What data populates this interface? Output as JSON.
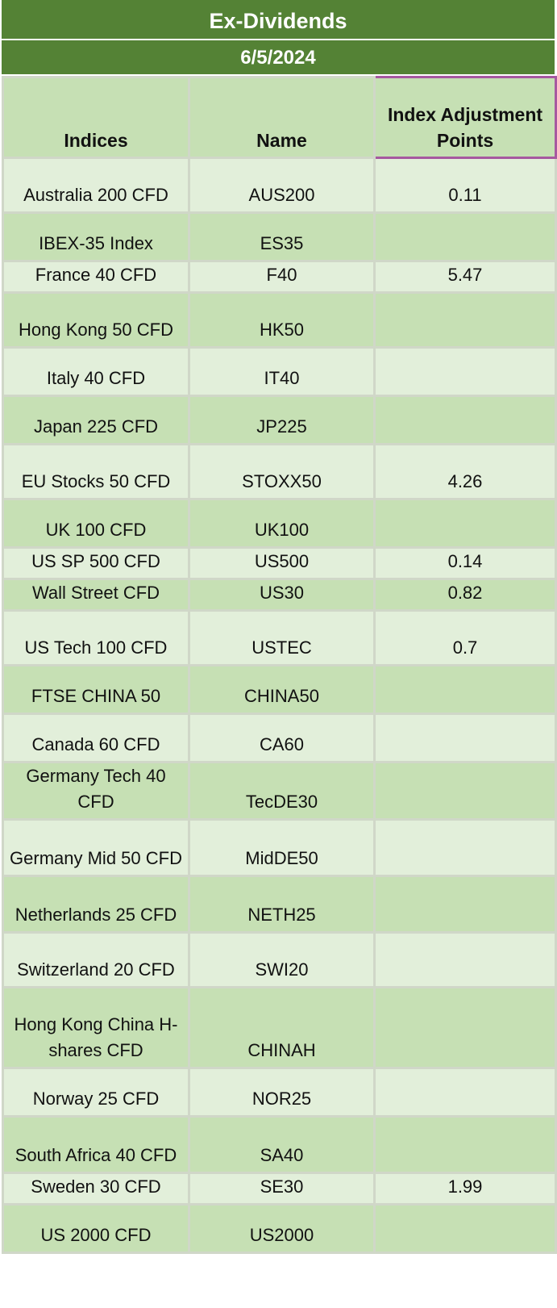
{
  "title": "Ex-Dividends",
  "date": "6/5/2024",
  "headers": {
    "indices": "Indices",
    "name": "Name",
    "adjustment": "Index Adjustment Points"
  },
  "rows": [
    {
      "index": "Australia 200 CFD",
      "name": "AUS200",
      "points": "0.11"
    },
    {
      "index": "IBEX-35 Index",
      "name": "ES35",
      "points": ""
    },
    {
      "index": "France 40 CFD",
      "name": "F40",
      "points": "5.47"
    },
    {
      "index": "Hong Kong 50 CFD",
      "name": "HK50",
      "points": ""
    },
    {
      "index": "Italy 40 CFD",
      "name": "IT40",
      "points": ""
    },
    {
      "index": "Japan 225 CFD",
      "name": "JP225",
      "points": ""
    },
    {
      "index": "EU Stocks 50 CFD",
      "name": "STOXX50",
      "points": "4.26"
    },
    {
      "index": "UK 100 CFD",
      "name": "UK100",
      "points": ""
    },
    {
      "index": "US SP 500 CFD",
      "name": "US500",
      "points": "0.14"
    },
    {
      "index": "Wall Street CFD",
      "name": "US30",
      "points": "0.82"
    },
    {
      "index": "US Tech 100 CFD",
      "name": "USTEC",
      "points": "0.7"
    },
    {
      "index": "FTSE CHINA 50",
      "name": "CHINA50",
      "points": ""
    },
    {
      "index": "Canada 60 CFD",
      "name": "CA60",
      "points": ""
    },
    {
      "index": "Germany Tech 40 CFD",
      "name": "TecDE30",
      "points": ""
    },
    {
      "index": "Germany Mid 50 CFD",
      "name": "MidDE50",
      "points": ""
    },
    {
      "index": "Netherlands 25 CFD",
      "name": "NETH25",
      "points": ""
    },
    {
      "index": "Switzerland 20 CFD",
      "name": "SWI20",
      "points": ""
    },
    {
      "index": "Hong Kong China H-shares CFD",
      "name": "CHINAH",
      "points": ""
    },
    {
      "index": "Norway 25 CFD",
      "name": "NOR25",
      "points": ""
    },
    {
      "index": "South Africa 40 CFD",
      "name": "SA40",
      "points": ""
    },
    {
      "index": "Sweden 30 CFD",
      "name": "SE30",
      "points": "1.99"
    },
    {
      "index": "US 2000 CFD",
      "name": "US2000",
      "points": ""
    }
  ]
}
